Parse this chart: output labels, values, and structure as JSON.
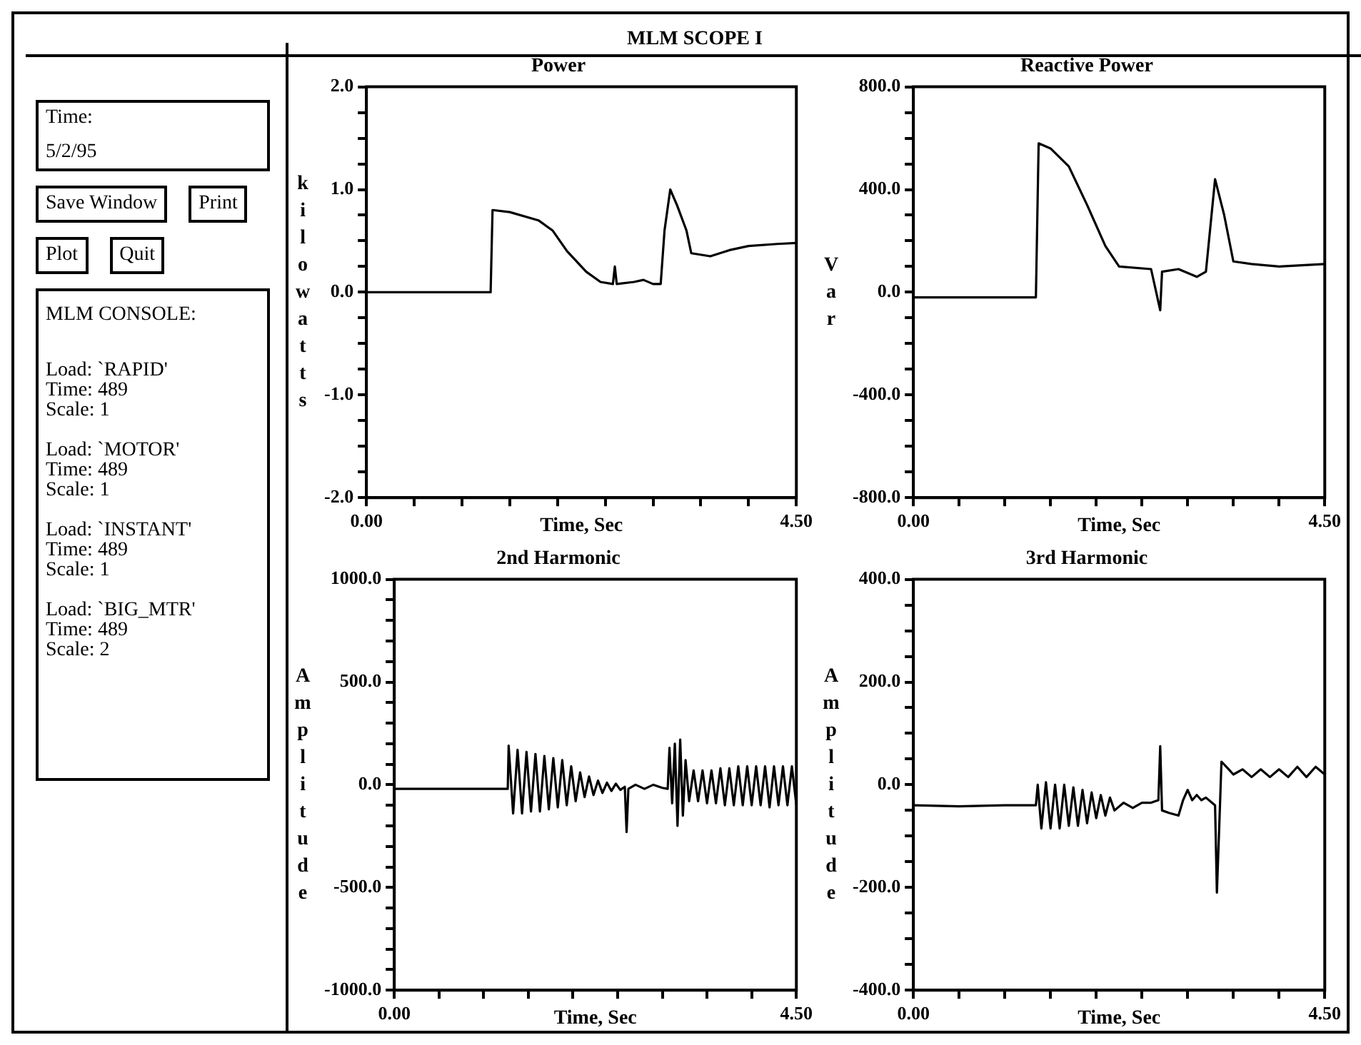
{
  "chart_data": [
    {
      "type": "other",
      "title": "MLM SCOPE I",
      "annotations": [
        "Time:",
        "5/2/95",
        "Save Window",
        "Print",
        "Plot",
        "Quit",
        "MLM CONSOLE:",
        "Load: `RAPID'",
        "Time: 489",
        "Scale: 1",
        "Load: `MOTOR'",
        "Time: 489",
        "Scale: 1",
        "Load: `INSTANT'",
        "Time: 489",
        "Scale: 1",
        "Load: `BIG_MTR'",
        "Time: 489",
        "Scale: 2"
      ]
    },
    {
      "type": "line",
      "title": "Power",
      "xlabel": "Time, Sec",
      "ylabel": "kilowatts",
      "color": "#000000",
      "x": [
        0,
        0.5,
        1.0,
        1.3,
        1.32,
        1.5,
        1.8,
        1.95,
        2.1,
        2.3,
        2.45,
        2.58,
        2.6,
        2.62,
        2.8,
        2.9,
        3.0,
        3.08,
        3.12,
        3.18,
        3.25,
        3.35,
        3.4,
        3.6,
        3.8,
        4.0,
        4.3,
        4.5
      ],
      "values": [
        0,
        0,
        0,
        0,
        0.8,
        0.78,
        0.7,
        0.6,
        0.4,
        0.2,
        0.1,
        0.08,
        0.25,
        0.08,
        0.1,
        0.12,
        0.08,
        0.08,
        0.6,
        1.0,
        0.85,
        0.6,
        0.38,
        0.35,
        0.41,
        0.45,
        0.47,
        0.48
      ],
      "xlim": [
        0,
        4.5
      ],
      "xticks": [
        {
          "value": 0,
          "label": "0.00"
        },
        {
          "value": 0.5,
          "label": null
        },
        {
          "value": 1,
          "label": null
        },
        {
          "value": 1.5,
          "label": null
        },
        {
          "value": 2,
          "label": null
        },
        {
          "value": 2.5,
          "label": null
        },
        {
          "value": 3,
          "label": null
        },
        {
          "value": 3.5,
          "label": null
        },
        {
          "value": 4,
          "label": null
        },
        {
          "value": 4.5,
          "label": "4.50"
        }
      ],
      "ylim": [
        -2,
        2
      ],
      "yticks": [
        {
          "value": -2,
          "label": "-2.0"
        },
        {
          "value": -1.75,
          "label": null
        },
        {
          "value": -1.5,
          "label": null
        },
        {
          "value": -1.25,
          "label": null
        },
        {
          "value": -1,
          "label": "-1.0"
        },
        {
          "value": -0.75,
          "label": null
        },
        {
          "value": -0.5,
          "label": null
        },
        {
          "value": -0.25,
          "label": null
        },
        {
          "value": 0,
          "label": "0.0"
        },
        {
          "value": 0.25,
          "label": null
        },
        {
          "value": 0.5,
          "label": null
        },
        {
          "value": 0.75,
          "label": null
        },
        {
          "value": 1,
          "label": "1.0"
        },
        {
          "value": 1.25,
          "label": null
        },
        {
          "value": 1.5,
          "label": null
        },
        {
          "value": 1.75,
          "label": null
        },
        {
          "value": 2,
          "label": "2.0"
        }
      ]
    },
    {
      "type": "line",
      "title": "Reactive Power",
      "xlabel": "Time, Sec",
      "ylabel": "Var",
      "color": "#000000",
      "x": [
        0,
        0.5,
        1.0,
        1.34,
        1.37,
        1.5,
        1.7,
        1.9,
        2.1,
        2.25,
        2.6,
        2.7,
        2.72,
        2.9,
        3.1,
        3.2,
        3.3,
        3.4,
        3.5,
        3.7,
        4.0,
        4.5
      ],
      "values": [
        -20,
        -20,
        -20,
        -20,
        580,
        560,
        490,
        340,
        180,
        100,
        90,
        -70,
        80,
        90,
        60,
        80,
        440,
        300,
        120,
        110,
        100,
        110
      ],
      "xlim": [
        0,
        4.5
      ],
      "xticks": [
        {
          "value": 0,
          "label": "0.00"
        },
        {
          "value": 0.5,
          "label": null
        },
        {
          "value": 1,
          "label": null
        },
        {
          "value": 1.5,
          "label": null
        },
        {
          "value": 2,
          "label": null
        },
        {
          "value": 2.5,
          "label": null
        },
        {
          "value": 3,
          "label": null
        },
        {
          "value": 3.5,
          "label": null
        },
        {
          "value": 4,
          "label": null
        },
        {
          "value": 4.5,
          "label": "4.50"
        }
      ],
      "ylim": [
        -800,
        800
      ],
      "yticks": [
        {
          "value": -800,
          "label": "-800.0"
        },
        {
          "value": -700,
          "label": null
        },
        {
          "value": -600,
          "label": null
        },
        {
          "value": -500,
          "label": null
        },
        {
          "value": -400,
          "label": "-400.0"
        },
        {
          "value": -300,
          "label": null
        },
        {
          "value": -200,
          "label": null
        },
        {
          "value": -100,
          "label": null
        },
        {
          "value": 0,
          "label": "0.0"
        },
        {
          "value": 100,
          "label": null
        },
        {
          "value": 200,
          "label": null
        },
        {
          "value": 300,
          "label": null
        },
        {
          "value": 400,
          "label": "400.0"
        },
        {
          "value": 500,
          "label": null
        },
        {
          "value": 600,
          "label": null
        },
        {
          "value": 700,
          "label": null
        },
        {
          "value": 800,
          "label": "800.0"
        }
      ]
    },
    {
      "type": "line",
      "title": "2nd Harmonic",
      "xlabel": "Time, Sec",
      "ylabel": "Amplitude",
      "color": "#000000",
      "x": [
        0,
        1.27,
        1.28,
        1.33,
        1.38,
        1.43,
        1.48,
        1.53,
        1.58,
        1.63,
        1.68,
        1.73,
        1.78,
        1.83,
        1.88,
        1.93,
        1.98,
        2.03,
        2.08,
        2.13,
        2.18,
        2.23,
        2.28,
        2.33,
        2.38,
        2.43,
        2.48,
        2.53,
        2.58,
        2.6,
        2.62,
        2.7,
        2.8,
        2.9,
        3.0,
        3.06,
        3.08,
        3.11,
        3.14,
        3.17,
        3.2,
        3.23,
        3.26,
        3.3,
        3.35,
        3.4,
        3.45,
        3.5,
        3.55,
        3.6,
        3.65,
        3.7,
        3.75,
        3.8,
        3.85,
        3.9,
        3.95,
        4.0,
        4.05,
        4.1,
        4.15,
        4.2,
        4.25,
        4.3,
        4.35,
        4.4,
        4.45,
        4.5
      ],
      "values": [
        -20,
        -20,
        190,
        -140,
        170,
        -140,
        160,
        -130,
        150,
        -130,
        140,
        -120,
        130,
        -110,
        120,
        -100,
        90,
        -80,
        60,
        -60,
        40,
        -50,
        20,
        -40,
        10,
        -30,
        5,
        -25,
        -10,
        -230,
        -20,
        0,
        -20,
        0,
        -15,
        -20,
        180,
        -90,
        200,
        -200,
        220,
        -150,
        120,
        -80,
        70,
        -80,
        70,
        -90,
        70,
        -90,
        80,
        -100,
        80,
        -100,
        90,
        -100,
        90,
        -100,
        90,
        -100,
        90,
        -110,
        90,
        -100,
        90,
        -100,
        90,
        -100
      ],
      "xlim": [
        0,
        4.5
      ],
      "xticks": [
        {
          "value": 0,
          "label": "0.00"
        },
        {
          "value": 0.5,
          "label": null
        },
        {
          "value": 1,
          "label": null
        },
        {
          "value": 1.5,
          "label": null
        },
        {
          "value": 2,
          "label": null
        },
        {
          "value": 2.5,
          "label": null
        },
        {
          "value": 3,
          "label": null
        },
        {
          "value": 3.5,
          "label": null
        },
        {
          "value": 4,
          "label": null
        },
        {
          "value": 4.5,
          "label": "4.50"
        }
      ],
      "ylim": [
        -1000,
        1000
      ],
      "yticks": [
        {
          "value": -1000,
          "label": "-1000.0"
        },
        {
          "value": -900,
          "label": null
        },
        {
          "value": -800,
          "label": null
        },
        {
          "value": -700,
          "label": null
        },
        {
          "value": -600,
          "label": null
        },
        {
          "value": -500,
          "label": "-500.0"
        },
        {
          "value": -400,
          "label": null
        },
        {
          "value": -300,
          "label": null
        },
        {
          "value": -200,
          "label": null
        },
        {
          "value": -100,
          "label": null
        },
        {
          "value": 0,
          "label": "0.0"
        },
        {
          "value": 100,
          "label": null
        },
        {
          "value": 200,
          "label": null
        },
        {
          "value": 300,
          "label": null
        },
        {
          "value": 400,
          "label": null
        },
        {
          "value": 500,
          "label": "500.0"
        },
        {
          "value": 600,
          "label": null
        },
        {
          "value": 700,
          "label": null
        },
        {
          "value": 800,
          "label": null
        },
        {
          "value": 900,
          "label": null
        },
        {
          "value": 1000,
          "label": "1000.0"
        }
      ]
    },
    {
      "type": "line",
      "title": "3rd Harmonic",
      "xlabel": "Time, Sec",
      "ylabel": "Amplitude",
      "color": "#000000",
      "x": [
        0,
        0.5,
        1.0,
        1.34,
        1.36,
        1.4,
        1.45,
        1.5,
        1.55,
        1.6,
        1.65,
        1.7,
        1.75,
        1.8,
        1.85,
        1.9,
        1.95,
        2.0,
        2.05,
        2.1,
        2.15,
        2.2,
        2.3,
        2.4,
        2.5,
        2.6,
        2.68,
        2.7,
        2.72,
        2.8,
        2.9,
        2.95,
        3.0,
        3.05,
        3.1,
        3.15,
        3.2,
        3.3,
        3.32,
        3.35,
        3.37,
        3.45,
        3.5,
        3.6,
        3.7,
        3.8,
        3.9,
        4.0,
        4.1,
        4.2,
        4.3,
        4.4,
        4.5
      ],
      "values": [
        -40,
        -42,
        -40,
        -40,
        0,
        -85,
        5,
        -85,
        0,
        -85,
        0,
        -80,
        -5,
        -80,
        -10,
        -75,
        -15,
        -65,
        -20,
        -60,
        -25,
        -50,
        -35,
        -45,
        -35,
        -35,
        -30,
        75,
        -50,
        -55,
        -60,
        -30,
        -10,
        -30,
        -20,
        -30,
        -25,
        -40,
        -210,
        -60,
        45,
        30,
        20,
        30,
        15,
        30,
        15,
        30,
        15,
        35,
        15,
        35,
        20
      ],
      "xlim": [
        0,
        4.5
      ],
      "xticks": [
        {
          "value": 0,
          "label": "0.00"
        },
        {
          "value": 0.5,
          "label": null
        },
        {
          "value": 1,
          "label": null
        },
        {
          "value": 1.5,
          "label": null
        },
        {
          "value": 2,
          "label": null
        },
        {
          "value": 2.5,
          "label": null
        },
        {
          "value": 3,
          "label": null
        },
        {
          "value": 3.5,
          "label": null
        },
        {
          "value": 4,
          "label": null
        },
        {
          "value": 4.5,
          "label": "4.50"
        }
      ],
      "ylim": [
        -400,
        400
      ],
      "yticks": [
        {
          "value": -400,
          "label": "-400.0"
        },
        {
          "value": -350,
          "label": null
        },
        {
          "value": -300,
          "label": null
        },
        {
          "value": -250,
          "label": null
        },
        {
          "value": -200,
          "label": "-200.0"
        },
        {
          "value": -150,
          "label": null
        },
        {
          "value": -100,
          "label": null
        },
        {
          "value": -50,
          "label": null
        },
        {
          "value": 0,
          "label": "0.0"
        },
        {
          "value": 50,
          "label": null
        },
        {
          "value": 100,
          "label": null
        },
        {
          "value": 150,
          "label": null
        },
        {
          "value": 200,
          "label": "200.0"
        },
        {
          "value": 250,
          "label": null
        },
        {
          "value": 300,
          "label": null
        },
        {
          "value": 350,
          "label": null
        },
        {
          "value": 400,
          "label": "400.0"
        }
      ]
    }
  ]
}
